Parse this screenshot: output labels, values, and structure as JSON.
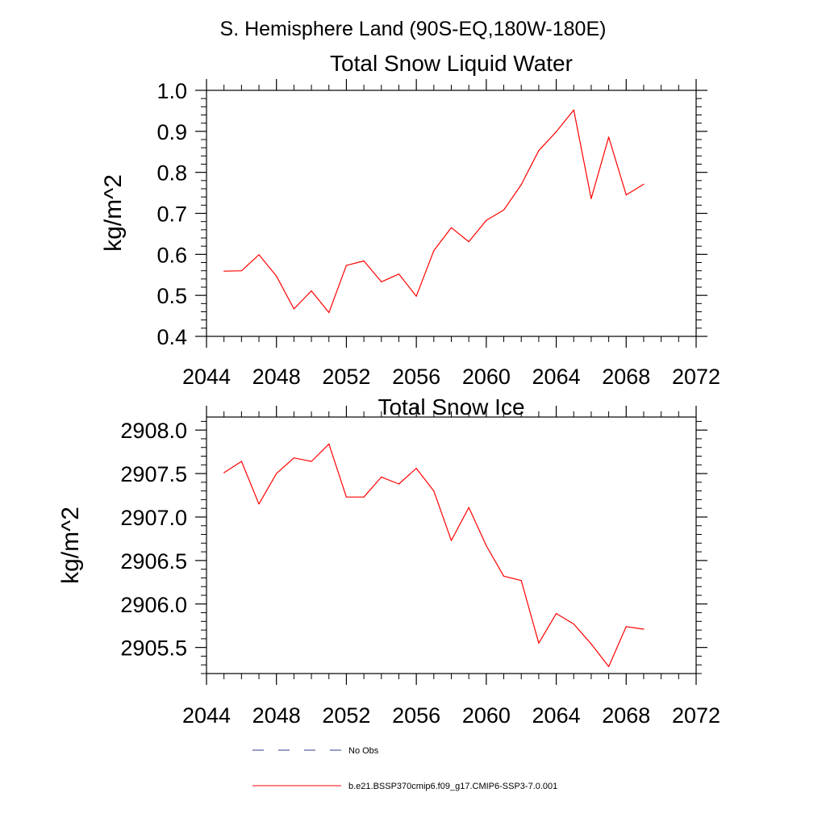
{
  "figure": {
    "title": "S. Hemisphere Land (90S-EQ,180W-180E)"
  },
  "chart_data": [
    {
      "type": "line",
      "title": "Total Snow Liquid Water",
      "ylabel": "kg/m^2",
      "xlabel": "",
      "xlim": [
        2044,
        2072
      ],
      "ylim": [
        0.4,
        1.0
      ],
      "x_ticks": [
        2044,
        2048,
        2052,
        2056,
        2060,
        2064,
        2068,
        2072
      ],
      "x_tick_labels": [
        "2044",
        "2048",
        "2052",
        "2056",
        "2060",
        "2064",
        "2068",
        "2072"
      ],
      "y_ticks": [
        0.4,
        0.5,
        0.6,
        0.7,
        0.8,
        0.9,
        1.0
      ],
      "y_tick_labels": [
        "0.4",
        "0.5",
        "0.6",
        "0.7",
        "0.8",
        "0.9",
        "1.0"
      ],
      "grid": false,
      "series": [
        {
          "name": "b.e21.BSSP370cmip6.f09_g17.CMIP6-SSP3-7.0.001",
          "color": "#ff0000",
          "x": [
            2045,
            2046,
            2047,
            2048,
            2049,
            2050,
            2051,
            2052,
            2053,
            2054,
            2055,
            2056,
            2057,
            2058,
            2059,
            2060,
            2061,
            2062,
            2063,
            2064,
            2065,
            2066,
            2067,
            2068,
            2069
          ],
          "y": [
            0.559,
            0.56,
            0.599,
            0.547,
            0.467,
            0.511,
            0.458,
            0.573,
            0.584,
            0.533,
            0.552,
            0.498,
            0.609,
            0.665,
            0.631,
            0.683,
            0.708,
            0.77,
            0.853,
            0.899,
            0.952,
            0.736,
            0.886,
            0.745,
            0.771
          ]
        }
      ]
    },
    {
      "type": "line",
      "title": "Total Snow Ice",
      "ylabel": "kg/m^2",
      "xlabel": "",
      "xlim": [
        2044,
        2072
      ],
      "ylim": [
        2905.2,
        2908.15
      ],
      "x_ticks": [
        2044,
        2048,
        2052,
        2056,
        2060,
        2064,
        2068,
        2072
      ],
      "x_tick_labels": [
        "2044",
        "2048",
        "2052",
        "2056",
        "2060",
        "2064",
        "2068",
        "2072"
      ],
      "y_ticks": [
        2905.5,
        2906.0,
        2906.5,
        2907.0,
        2907.5,
        2908.0
      ],
      "y_tick_labels": [
        "2905.5",
        "2906.0",
        "2906.5",
        "2907.0",
        "2907.5",
        "2908.0"
      ],
      "grid": false,
      "series": [
        {
          "name": "b.e21.BSSP370cmip6.f09_g17.CMIP6-SSP3-7.0.001",
          "color": "#ff0000",
          "x": [
            2045,
            2046,
            2047,
            2048,
            2049,
            2050,
            2051,
            2052,
            2053,
            2054,
            2055,
            2056,
            2057,
            2058,
            2059,
            2060,
            2061,
            2062,
            2063,
            2064,
            2065,
            2066,
            2067,
            2068,
            2069
          ],
          "y": [
            2907.51,
            2907.64,
            2907.15,
            2907.5,
            2907.68,
            2907.64,
            2907.84,
            2907.23,
            2907.23,
            2907.46,
            2907.38,
            2907.56,
            2907.3,
            2906.73,
            2907.11,
            2906.67,
            2906.32,
            2906.27,
            2905.55,
            2905.89,
            2905.77,
            2905.54,
            2905.28,
            2905.74,
            2905.71
          ]
        }
      ]
    }
  ],
  "legend": {
    "placement": "bottom",
    "items": [
      {
        "label": "No Obs",
        "color": "#2e3a8c",
        "dash": "dashed"
      },
      {
        "label": "b.e21.BSSP370cmip6.f09_g17.CMIP6-SSP3-7.0.001",
        "color": "#ff0000",
        "dash": "solid"
      }
    ]
  }
}
